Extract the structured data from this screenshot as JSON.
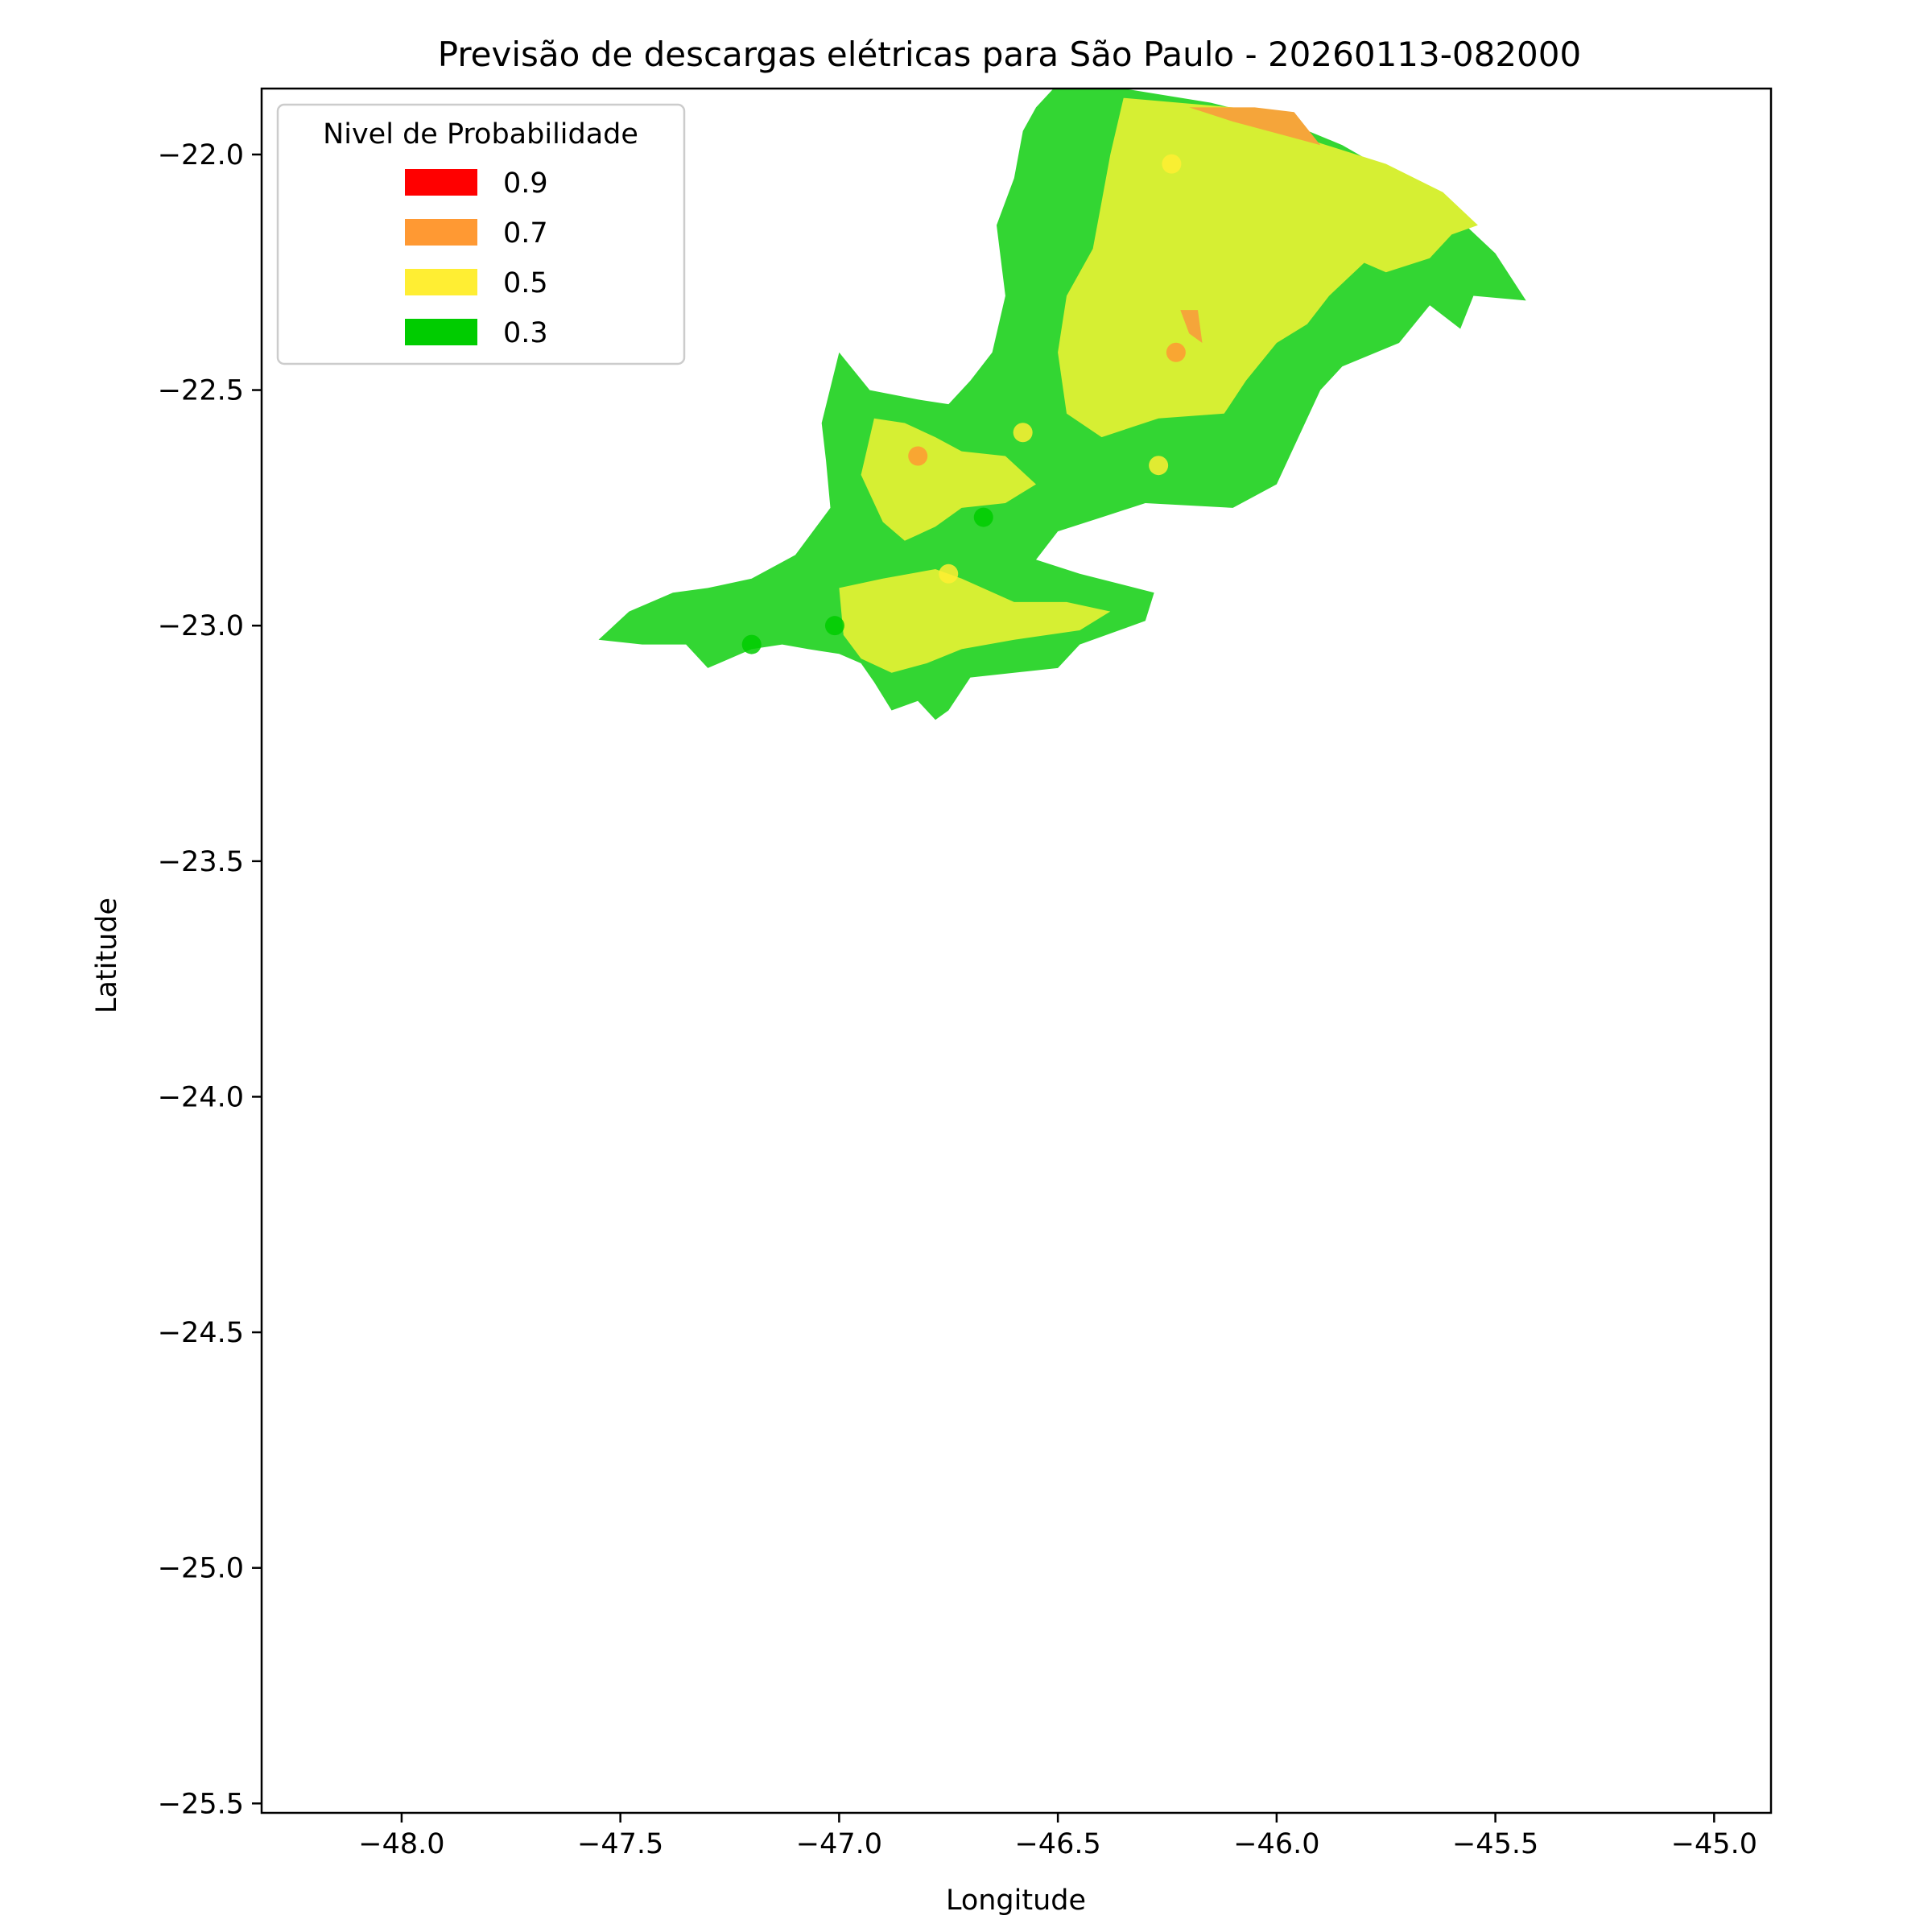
{
  "chart_data": {
    "type": "contour-map",
    "title": "Previsão de descargas elétricas para São Paulo - 20260113-082000",
    "xlabel": "Longitude",
    "ylabel": "Latitude",
    "xlim": [
      -48.32,
      -44.87
    ],
    "ylim": [
      -25.52,
      -21.86
    ],
    "x_ticks": [
      -48.0,
      -47.5,
      -47.0,
      -46.5,
      -46.0,
      -45.5,
      -45.0
    ],
    "x_tick_labels": [
      "−48.0",
      "−47.5",
      "−47.0",
      "−46.5",
      "−46.0",
      "−45.5",
      "−45.0"
    ],
    "y_ticks": [
      -22.0,
      -22.5,
      -23.0,
      -23.5,
      -24.0,
      -24.5,
      -25.0,
      -25.5
    ],
    "y_tick_labels": [
      "−22.0",
      "−22.5",
      "−23.0",
      "−23.5",
      "−24.0",
      "−24.5",
      "−25.0",
      "−25.5"
    ],
    "grid": false,
    "legend": {
      "title": "Nivel de Probabilidade",
      "placement": "top-left",
      "entries": [
        {
          "label": "0.9",
          "color": "#ff0000"
        },
        {
          "label": "0.7",
          "color": "#ff9933"
        },
        {
          "label": "0.5",
          "color": "#ffee33"
        },
        {
          "label": "0.3",
          "color": "#00cc00"
        }
      ]
    },
    "regions": [
      {
        "level": "0.3",
        "color": "#33d633",
        "name": "low-prob-region-main",
        "coords": [
          [
            -46.5,
            -21.85
          ],
          [
            -46.35,
            -21.86
          ],
          [
            -46.15,
            -21.89
          ],
          [
            -45.98,
            -21.93
          ],
          [
            -45.85,
            -21.98
          ],
          [
            -45.7,
            -22.06
          ],
          [
            -45.58,
            -22.14
          ],
          [
            -45.5,
            -22.21
          ],
          [
            -45.43,
            -22.31
          ],
          [
            -45.55,
            -22.3
          ],
          [
            -45.58,
            -22.37
          ],
          [
            -45.65,
            -22.32
          ],
          [
            -45.72,
            -22.4
          ],
          [
            -45.85,
            -22.45
          ],
          [
            -45.9,
            -22.5
          ],
          [
            -45.95,
            -22.6
          ],
          [
            -46.0,
            -22.7
          ],
          [
            -46.1,
            -22.75
          ],
          [
            -46.3,
            -22.74
          ],
          [
            -46.4,
            -22.77
          ],
          [
            -46.5,
            -22.8
          ],
          [
            -46.55,
            -22.86
          ],
          [
            -46.45,
            -22.89
          ],
          [
            -46.28,
            -22.93
          ],
          [
            -46.3,
            -22.99
          ],
          [
            -46.45,
            -23.04
          ],
          [
            -46.5,
            -23.09
          ],
          [
            -46.7,
            -23.11
          ],
          [
            -46.75,
            -23.18
          ],
          [
            -46.78,
            -23.2
          ],
          [
            -46.82,
            -23.16
          ],
          [
            -46.88,
            -23.18
          ],
          [
            -46.92,
            -23.12
          ],
          [
            -46.95,
            -23.08
          ],
          [
            -47.0,
            -23.06
          ],
          [
            -47.07,
            -23.05
          ],
          [
            -47.13,
            -23.04
          ],
          [
            -47.2,
            -23.05
          ],
          [
            -47.3,
            -23.09
          ],
          [
            -47.35,
            -23.04
          ],
          [
            -47.45,
            -23.04
          ],
          [
            -47.55,
            -23.03
          ],
          [
            -47.48,
            -22.97
          ],
          [
            -47.38,
            -22.93
          ],
          [
            -47.3,
            -22.92
          ],
          [
            -47.2,
            -22.9
          ],
          [
            -47.1,
            -22.85
          ],
          [
            -47.02,
            -22.75
          ],
          [
            -47.03,
            -22.65
          ],
          [
            -47.04,
            -22.57
          ],
          [
            -47.0,
            -22.42
          ],
          [
            -46.93,
            -22.5
          ],
          [
            -46.82,
            -22.52
          ],
          [
            -46.75,
            -22.53
          ],
          [
            -46.7,
            -22.48
          ],
          [
            -46.65,
            -22.42
          ],
          [
            -46.62,
            -22.3
          ],
          [
            -46.64,
            -22.15
          ],
          [
            -46.6,
            -22.05
          ],
          [
            -46.58,
            -21.95
          ],
          [
            -46.55,
            -21.9
          ]
        ]
      },
      {
        "level": "0.5",
        "color": "#d6ef33",
        "name": "mid-prob-region-north",
        "coords": [
          [
            -46.35,
            -21.88
          ],
          [
            -46.1,
            -21.9
          ],
          [
            -45.92,
            -21.97
          ],
          [
            -45.75,
            -22.02
          ],
          [
            -45.62,
            -22.08
          ],
          [
            -45.54,
            -22.15
          ],
          [
            -45.6,
            -22.17
          ],
          [
            -45.65,
            -22.22
          ],
          [
            -45.75,
            -22.25
          ],
          [
            -45.8,
            -22.23
          ],
          [
            -45.88,
            -22.3
          ],
          [
            -45.93,
            -22.36
          ],
          [
            -46.0,
            -22.4
          ],
          [
            -46.07,
            -22.48
          ],
          [
            -46.12,
            -22.55
          ],
          [
            -46.27,
            -22.56
          ],
          [
            -46.4,
            -22.6
          ],
          [
            -46.48,
            -22.55
          ],
          [
            -46.5,
            -22.42
          ],
          [
            -46.48,
            -22.3
          ],
          [
            -46.42,
            -22.2
          ],
          [
            -46.4,
            -22.1
          ],
          [
            -46.38,
            -22.0
          ]
        ]
      },
      {
        "level": "0.5",
        "color": "#d6ef33",
        "name": "mid-prob-region-central",
        "coords": [
          [
            -46.92,
            -22.56
          ],
          [
            -46.85,
            -22.57
          ],
          [
            -46.78,
            -22.6
          ],
          [
            -46.72,
            -22.63
          ],
          [
            -46.62,
            -22.64
          ],
          [
            -46.55,
            -22.7
          ],
          [
            -46.62,
            -22.74
          ],
          [
            -46.72,
            -22.75
          ],
          [
            -46.78,
            -22.79
          ],
          [
            -46.85,
            -22.82
          ],
          [
            -46.9,
            -22.78
          ],
          [
            -46.95,
            -22.68
          ]
        ]
      },
      {
        "level": "0.5",
        "color": "#d6ef33",
        "name": "mid-prob-region-south",
        "coords": [
          [
            -47.0,
            -22.92
          ],
          [
            -46.9,
            -22.9
          ],
          [
            -46.78,
            -22.88
          ],
          [
            -46.72,
            -22.9
          ],
          [
            -46.6,
            -22.95
          ],
          [
            -46.48,
            -22.95
          ],
          [
            -46.38,
            -22.97
          ],
          [
            -46.45,
            -23.01
          ],
          [
            -46.6,
            -23.03
          ],
          [
            -46.72,
            -23.05
          ],
          [
            -46.8,
            -23.08
          ],
          [
            -46.88,
            -23.1
          ],
          [
            -46.95,
            -23.07
          ],
          [
            -46.99,
            -23.02
          ]
        ]
      },
      {
        "level": "0.7",
        "color": "#f5a53a",
        "name": "high-prob-region-north",
        "coords": [
          [
            -46.2,
            -21.9
          ],
          [
            -46.1,
            -21.93
          ],
          [
            -45.98,
            -21.96
          ],
          [
            -45.9,
            -21.98
          ],
          [
            -45.96,
            -21.91
          ],
          [
            -46.05,
            -21.9
          ]
        ]
      },
      {
        "level": "0.7",
        "color": "#f5a53a",
        "name": "high-prob-region-center",
        "coords": [
          [
            -46.22,
            -22.33
          ],
          [
            -46.18,
            -22.33
          ],
          [
            -46.17,
            -22.4
          ],
          [
            -46.2,
            -22.38
          ]
        ]
      }
    ],
    "points": [
      {
        "lon": -46.82,
        "lat": -22.64,
        "level": "0.7",
        "color": "#ff9933"
      },
      {
        "lon": -46.23,
        "lat": -22.42,
        "level": "0.7",
        "color": "#ff9933"
      },
      {
        "lon": -46.58,
        "lat": -22.59,
        "level": "0.5",
        "color": "#ffee33"
      },
      {
        "lon": -46.27,
        "lat": -22.66,
        "level": "0.5",
        "color": "#ffee33"
      },
      {
        "lon": -46.75,
        "lat": -22.89,
        "level": "0.5",
        "color": "#ffee33"
      },
      {
        "lon": -46.24,
        "lat": -22.02,
        "level": "0.5",
        "color": "#ffee33"
      },
      {
        "lon": -46.67,
        "lat": -22.77,
        "level": "0.3",
        "color": "#00cc00"
      },
      {
        "lon": -47.2,
        "lat": -23.04,
        "level": "0.3",
        "color": "#00cc00"
      },
      {
        "lon": -47.01,
        "lat": -23.0,
        "level": "0.3",
        "color": "#00cc00"
      }
    ]
  }
}
